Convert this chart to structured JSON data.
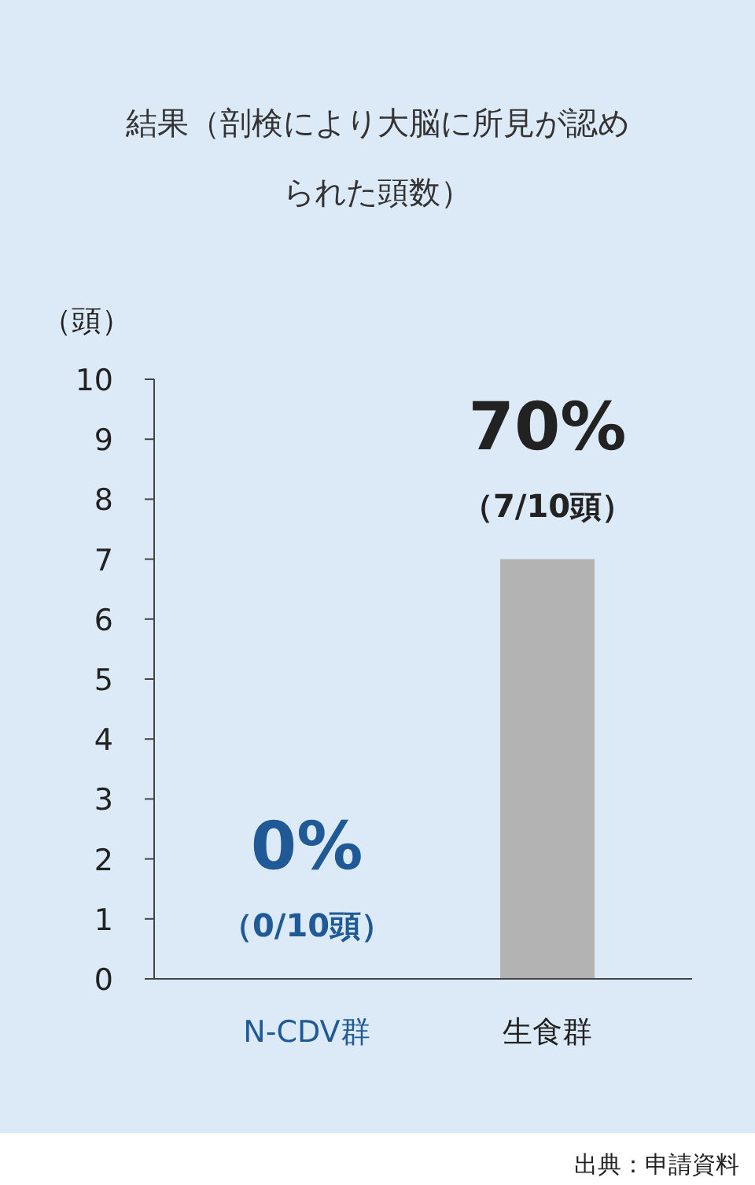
{
  "chart_data": {
    "type": "bar",
    "title": "結果（剖検により大脳に所見が認められた頭数）",
    "ylabel": "（頭）",
    "categories": [
      "N-CDV群",
      "生食群"
    ],
    "values": [
      0,
      7
    ],
    "colors": [
      "#1f5a96",
      "#b3b3b3"
    ],
    "annotations": [
      {
        "text": "0%",
        "x": "N-CDV群",
        "y": 0
      },
      {
        "text": "（0/10頭）",
        "x": "N-CDV群",
        "y": 0
      },
      {
        "text": "70%",
        "x": "生食群",
        "y": 7
      },
      {
        "text": "（7/10頭）",
        "x": "生食群",
        "y": 7
      },
      "出典：申請資料"
    ],
    "ylim": [
      0,
      10
    ],
    "yticks": [
      0,
      1,
      2,
      3,
      4,
      5,
      6,
      7,
      8,
      9,
      10
    ],
    "grid": false
  }
}
